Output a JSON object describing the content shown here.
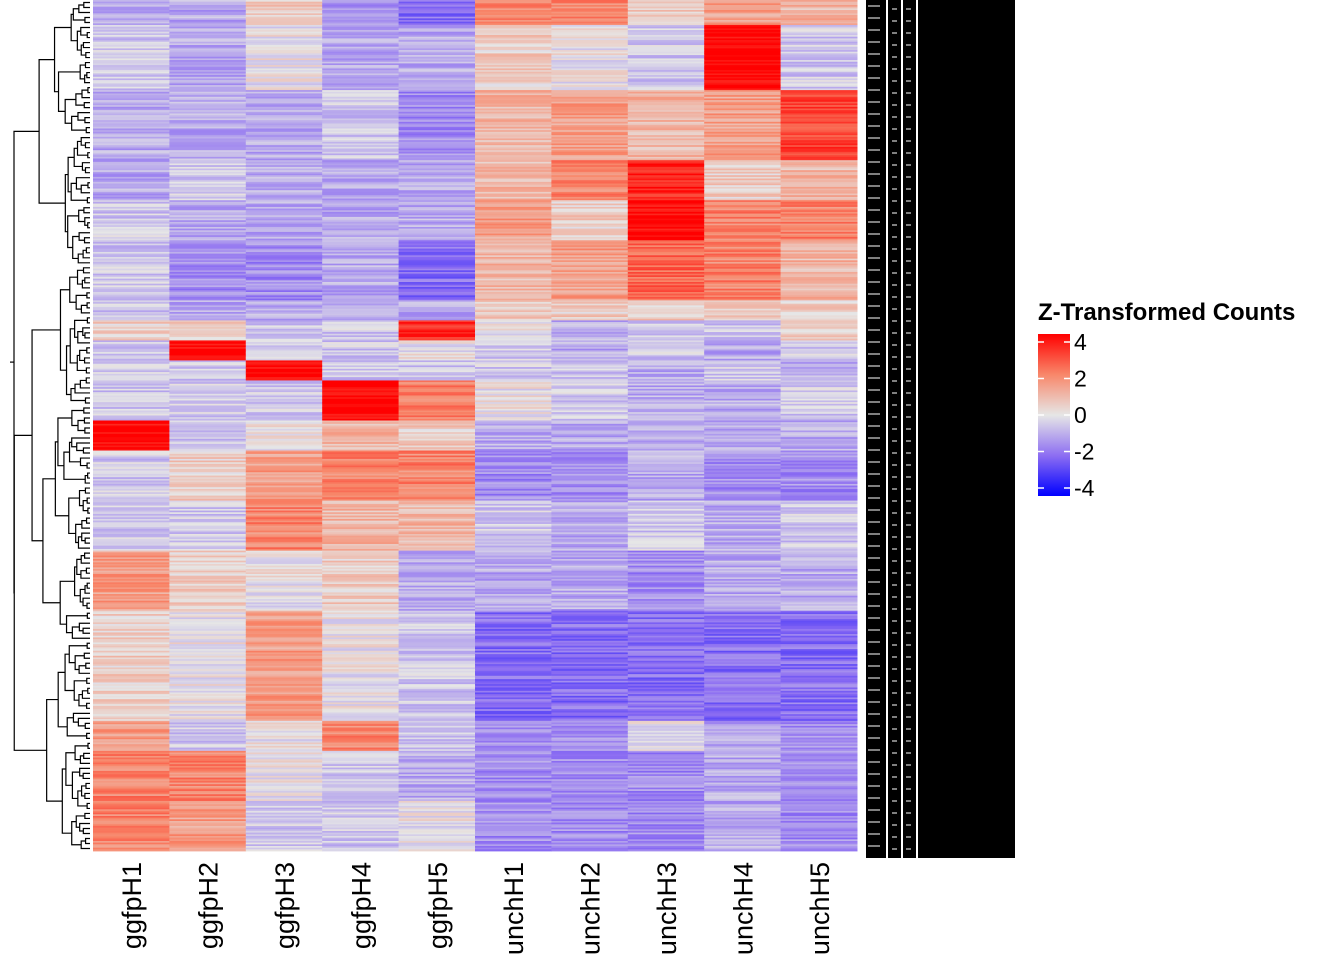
{
  "chart_data": {
    "type": "heatmap",
    "title": "",
    "columns": [
      "ggfpH1",
      "ggfpH2",
      "ggfpH3",
      "ggfpH4",
      "ggfpH5",
      "unchH1",
      "unchH2",
      "unchH3",
      "unchH4",
      "unchH5"
    ],
    "row_blocks": [
      {
        "n": 5,
        "v": [
          -1,
          -1,
          0.5,
          -1.5,
          -2,
          2,
          2,
          0.5,
          1.5,
          1
        ]
      },
      {
        "n": 13,
        "v": [
          -0.5,
          -1,
          0,
          -1,
          -1,
          0.5,
          0,
          -0.5,
          4,
          -0.5
        ]
      },
      {
        "n": 14,
        "v": [
          -1,
          -1,
          -1,
          -0.5,
          -1.5,
          1,
          1.5,
          1,
          1.5,
          3
        ]
      },
      {
        "n": 8,
        "v": [
          -1,
          -0.5,
          -1,
          -1,
          -1,
          1,
          2,
          3.5,
          0.5,
          1
        ]
      },
      {
        "n": 8,
        "v": [
          -0.5,
          -1,
          -1,
          -1,
          -1,
          1.5,
          0.5,
          4,
          2,
          2
        ]
      },
      {
        "n": 12,
        "v": [
          -0.5,
          -1.5,
          -1.5,
          -1,
          -2,
          1,
          1.5,
          2.5,
          2,
          1
        ]
      },
      {
        "n": 4,
        "v": [
          -0.5,
          -1,
          -1,
          -1,
          -1,
          0.5,
          0.5,
          0.5,
          0.5,
          0.5
        ]
      },
      {
        "n": 4,
        "v": [
          0.5,
          0.5,
          -0.5,
          -0.5,
          3.5,
          0,
          -1,
          -0.5,
          -0.5,
          0.5
        ]
      },
      {
        "n": 4,
        "v": [
          -0.5,
          4,
          -0.5,
          -0.5,
          0,
          -0.5,
          -1,
          -0.5,
          -1,
          -0.5
        ]
      },
      {
        "n": 4,
        "v": [
          -0.5,
          -0.5,
          4,
          -0.5,
          -0.5,
          -0.5,
          -0.5,
          -1,
          -0.5,
          -1
        ]
      },
      {
        "n": 8,
        "v": [
          -0.5,
          -0.5,
          -0.5,
          4,
          2,
          0,
          -0.5,
          -1,
          -1,
          -0.5
        ]
      },
      {
        "n": 6,
        "v": [
          4,
          -0.5,
          0,
          1,
          0.5,
          -1,
          -1,
          -1,
          -1,
          -1
        ]
      },
      {
        "n": 10,
        "v": [
          -0.5,
          0.5,
          1.5,
          2,
          2,
          -1.5,
          -1.5,
          -1,
          -1.5,
          -1.5
        ]
      },
      {
        "n": 10,
        "v": [
          -0.5,
          -0.5,
          2,
          1,
          1,
          -0.5,
          -1,
          -0.5,
          -1,
          -0.5
        ]
      },
      {
        "n": 12,
        "v": [
          1.5,
          0.5,
          0,
          0.5,
          -1,
          -1,
          -1,
          -1.5,
          -1,
          -1
        ]
      },
      {
        "n": 22,
        "v": [
          0.5,
          0,
          1.5,
          0,
          -0.5,
          -2,
          -2,
          -2,
          -2,
          -2
        ]
      },
      {
        "n": 6,
        "v": [
          1.5,
          -0.5,
          0,
          2,
          -0.5,
          -1.5,
          -1.5,
          0,
          -1,
          -1.5
        ]
      },
      {
        "n": 10,
        "v": [
          2,
          2,
          0,
          -0.5,
          -1,
          -1.5,
          -1.5,
          -1.5,
          -1,
          -1.5
        ]
      },
      {
        "n": 10,
        "v": [
          2,
          1.5,
          -0.5,
          -0.5,
          0,
          -1.5,
          -1.5,
          -1.5,
          -1,
          -1.5
        ]
      }
    ],
    "legend": {
      "title": "Z-Transformed Counts",
      "ticks": [
        "4",
        "2",
        "0",
        "-2",
        "-4"
      ],
      "tick_values": [
        4,
        2,
        0,
        -2,
        -4
      ],
      "range": [
        -4,
        4
      ],
      "colors": {
        "low": "#0000ff",
        "mid": "#e6e6e6",
        "high": "#ff0000"
      },
      "placement": "right"
    },
    "grid": false
  }
}
